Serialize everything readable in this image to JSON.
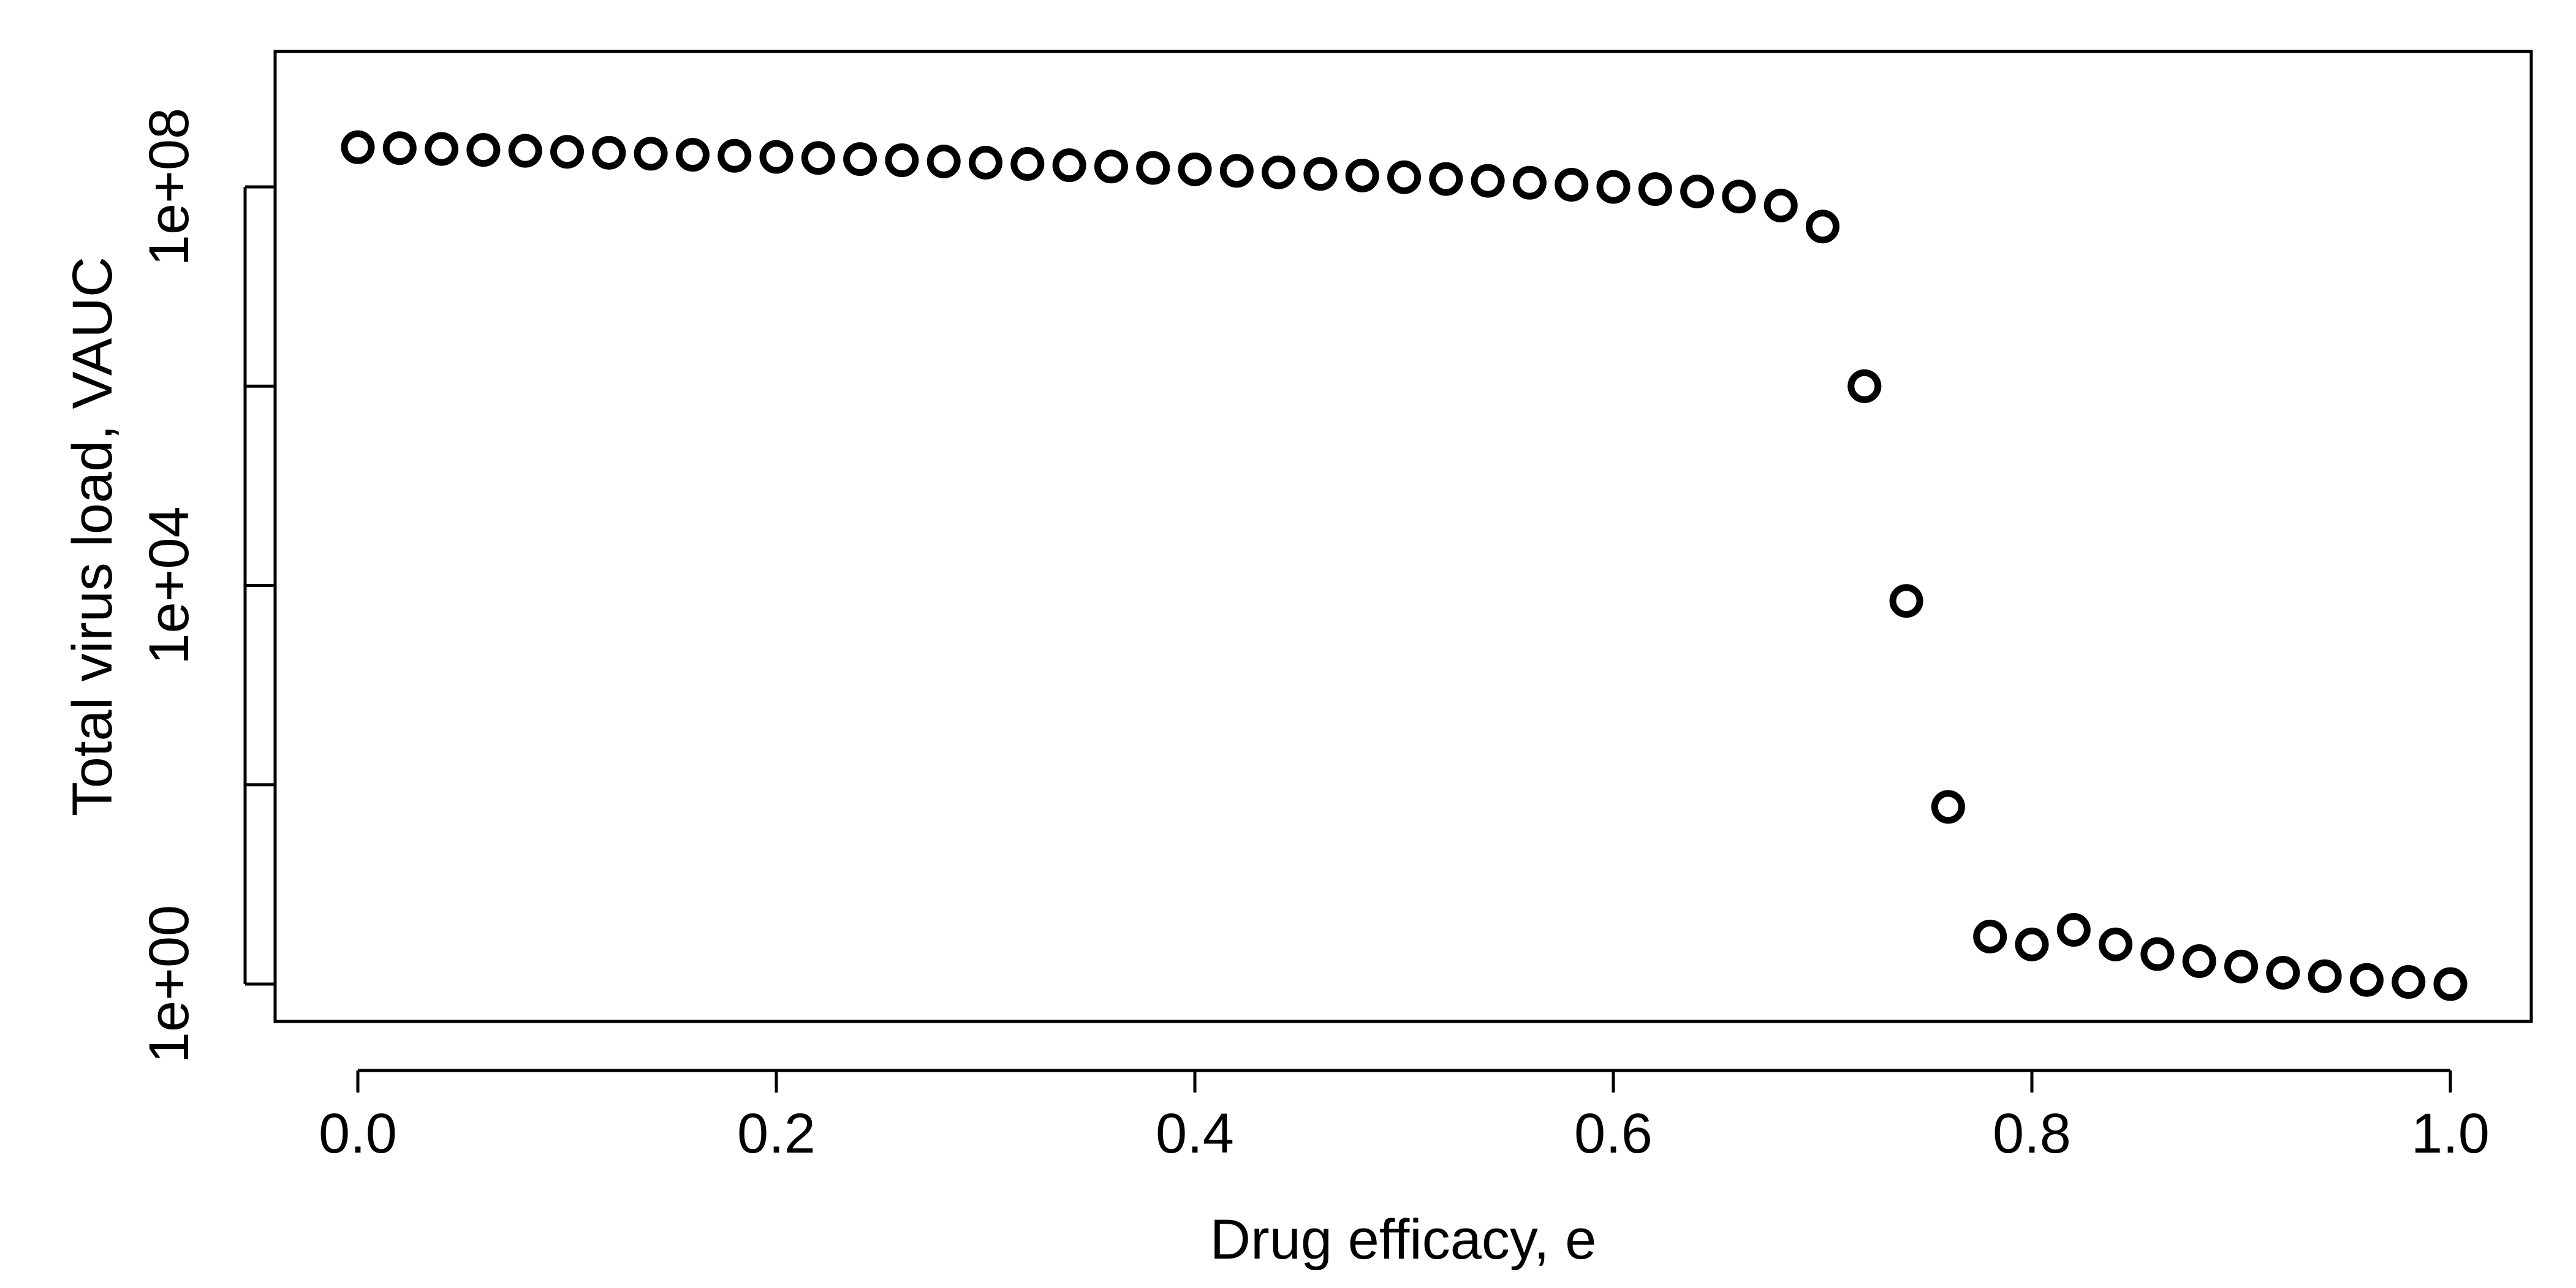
{
  "chart_data": {
    "type": "scatter",
    "xlabel": "Drug efficacy, e",
    "ylabel": "Total virus load, VAUC",
    "y_scale": "log10",
    "xlim": [
      0.0,
      1.0
    ],
    "ylim": [
      1,
      250000000.0
    ],
    "x_tick_values": [
      0.0,
      0.2,
      0.4,
      0.6,
      0.8,
      1.0
    ],
    "x_tick_labels": [
      "0.0",
      "0.2",
      "0.4",
      "0.6",
      "0.8",
      "1.0"
    ],
    "y_tick_values": [
      1,
      100,
      10000,
      1000000,
      100000000
    ],
    "y_tick_labels": [
      "1e+00",
      "",
      "1e+04",
      "",
      "1e+08"
    ],
    "box": true,
    "grid": false,
    "marker": "open-circle",
    "colors": {
      "points": "#000000",
      "axes": "#000000",
      "background": "#ffffff"
    },
    "series": [
      {
        "x": [
          0.0,
          0.02,
          0.04,
          0.06,
          0.08,
          0.1,
          0.12,
          0.14,
          0.16,
          0.18,
          0.2,
          0.22,
          0.24,
          0.26,
          0.28,
          0.3,
          0.32,
          0.34,
          0.36,
          0.38,
          0.4,
          0.42,
          0.44,
          0.46,
          0.48,
          0.5,
          0.52,
          0.54,
          0.56,
          0.58,
          0.6,
          0.62,
          0.64,
          0.66,
          0.68,
          0.7,
          0.72,
          0.74,
          0.76,
          0.78,
          0.8,
          0.82,
          0.84,
          0.86,
          0.88,
          0.9,
          0.92,
          0.94,
          0.96,
          0.98,
          1.0
        ],
        "y": [
          250000000.0,
          245000000.0,
          240000000.0,
          235000000.0,
          230000000.0,
          225000000.0,
          220000000.0,
          215000000.0,
          210000000.0,
          205000000.0,
          200000000.0,
          195000000.0,
          190000000.0,
          185000000.0,
          180000000.0,
          175000000.0,
          170000000.0,
          165000000.0,
          160000000.0,
          155000000.0,
          150000000.0,
          145000000.0,
          140000000.0,
          135000000.0,
          130000000.0,
          125000000.0,
          120000000.0,
          115000000.0,
          110000000.0,
          105000000.0,
          100000000.0,
          95000000.0,
          90000000.0,
          80000000.0,
          65000000.0,
          40000000.0,
          1000000.0,
          7000,
          60,
          3.0,
          2.5,
          3.5,
          2.5,
          2.0,
          1.7,
          1.5,
          1.3,
          1.2,
          1.1,
          1.05,
          1.0
        ]
      }
    ]
  }
}
